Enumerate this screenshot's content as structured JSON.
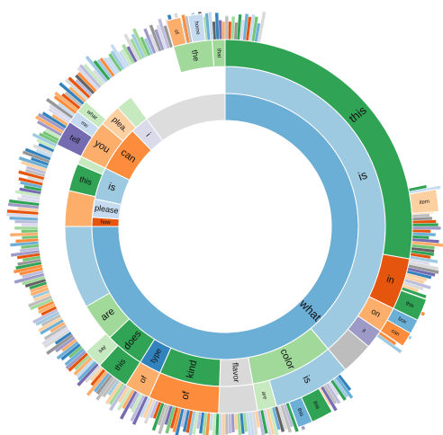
{
  "chart_data": {
    "type": "sunburst",
    "title": "",
    "description": "",
    "palette": [
      "#3182bd",
      "#6baed6",
      "#9ecae1",
      "#c6dbef",
      "#e6550d",
      "#fd8d3c",
      "#fdae6b",
      "#fdd0a2",
      "#31a354",
      "#74c476",
      "#a1d99b",
      "#c7e9c0",
      "#756bb1",
      "#9e9ac8",
      "#bcbddc",
      "#dadaeb",
      "#636363",
      "#969696",
      "#bdbdbd",
      "#d9d9d9"
    ],
    "segments": [
      {
        "label": "what",
        "ring": 1,
        "start": 0,
        "end": 270,
        "color": "#6baed6"
      },
      {
        "label": "how",
        "ring": 1,
        "start": 270,
        "end": 274,
        "color": "#e6550d"
      },
      {
        "label": "please",
        "ring": 1,
        "start": 274,
        "end": 282,
        "color": "#c6dbef"
      },
      {
        "label": "is",
        "ring": 1,
        "start": 282,
        "end": 296,
        "color": "#9ecae1"
      },
      {
        "label": "can",
        "ring": 1,
        "start": 296,
        "end": 316,
        "color": "#fd8d3c"
      },
      {
        "label": "i",
        "ring": 1,
        "start": 316,
        "end": 324,
        "color": "#dadaeb"
      },
      {
        "label": "",
        "ring": 1,
        "start": 324,
        "end": 360,
        "color": "#dddddd"
      },
      {
        "label": "is",
        "ring": 2,
        "start": 0,
        "end": 140,
        "color": "#9ecae1"
      },
      {
        "label": "color",
        "ring": 2,
        "start": 140,
        "end": 170,
        "color": "#a1d99b"
      },
      {
        "label": "flavor",
        "ring": 2,
        "start": 170,
        "end": 182,
        "color": "#d9d9d9"
      },
      {
        "label": "kind",
        "ring": 2,
        "start": 182,
        "end": 204,
        "color": "#31a354"
      },
      {
        "label": "type",
        "ring": 2,
        "start": 204,
        "end": 212,
        "color": "#3182bd"
      },
      {
        "label": "does",
        "ring": 2,
        "start": 212,
        "end": 226,
        "color": "#31a354"
      },
      {
        "label": "are",
        "ring": 2,
        "start": 226,
        "end": 240,
        "color": "#a1d99b"
      },
      {
        "label": "",
        "ring": 2,
        "start": 240,
        "end": 270,
        "color": "#9ecae1"
      },
      {
        "label": "",
        "ring": 2,
        "start": 270,
        "end": 283,
        "color": "#fdae6b"
      },
      {
        "label": "this",
        "ring": 2,
        "start": 283,
        "end": 293,
        "color": "#31a354"
      },
      {
        "label": "",
        "ring": 2,
        "start": 293,
        "end": 296,
        "color": "#c7e9c0"
      },
      {
        "label": "you",
        "ring": 2,
        "start": 296,
        "end": 310,
        "color": "#fdae6b"
      },
      {
        "label": "plea.",
        "ring": 2,
        "start": 310,
        "end": 318,
        "color": "#fdd0a2"
      },
      {
        "label": "",
        "ring": 2,
        "start": 318,
        "end": 324,
        "color": "#c7e9c0"
      },
      {
        "label": "this",
        "ring": 3,
        "start": 0,
        "end": 100,
        "color": "#31a354"
      },
      {
        "label": "in",
        "ring": 3,
        "start": 100,
        "end": 116,
        "color": "#e6550d"
      },
      {
        "label": "on",
        "ring": 3,
        "start": 116,
        "end": 124,
        "color": "#fdae6b"
      },
      {
        "label": "it",
        "ring": 3,
        "start": 124,
        "end": 130,
        "color": "#9e9ac8"
      },
      {
        "label": "",
        "ring": 3,
        "start": 130,
        "end": 140,
        "color": "#bdbdbd"
      },
      {
        "label": "is",
        "ring": 3,
        "start": 140,
        "end": 164,
        "color": "#9ecae1"
      },
      {
        "label": "are",
        "ring": 3,
        "start": 164,
        "end": 170,
        "color": "#c7e9c0"
      },
      {
        "label": "",
        "ring": 3,
        "start": 170,
        "end": 182,
        "color": "#d9d9d9"
      },
      {
        "label": "of",
        "ring": 3,
        "start": 182,
        "end": 204,
        "color": "#fd8d3c"
      },
      {
        "label": "of",
        "ring": 3,
        "start": 204,
        "end": 212,
        "color": "#fdae6b"
      },
      {
        "label": "this",
        "ring": 3,
        "start": 212,
        "end": 222,
        "color": "#31a354"
      },
      {
        "label": "say",
        "ring": 3,
        "start": 222,
        "end": 228,
        "color": "#c7e9c0"
      },
      {
        "label": "tell",
        "ring": 3,
        "start": 296,
        "end": 304,
        "color": "#756bb1"
      },
      {
        "label": "me",
        "ring": 3,
        "start": 304,
        "end": 308,
        "color": "#c6dbef"
      },
      {
        "label": "what",
        "ring": 3,
        "start": 308,
        "end": 312,
        "color": "#c7e9c0"
      },
      {
        "label": "the",
        "ring": 3,
        "start": 344,
        "end": 356,
        "color": "#a1d99b"
      },
      {
        "label": "that",
        "ring": 3,
        "start": 356,
        "end": 360,
        "color": "#a1d99b"
      },
      {
        "label": "item",
        "ring": 4,
        "start": 80,
        "end": 86,
        "color": "#fdd0a2"
      },
      {
        "label": "this",
        "ring": 4,
        "start": 110,
        "end": 116,
        "color": "#31a354"
      },
      {
        "label": "box",
        "ring": 4,
        "start": 116,
        "end": 120,
        "color": "#6baed6"
      },
      {
        "label": "can",
        "ring": 4,
        "start": 120,
        "end": 124,
        "color": "#fd8d3c"
      },
      {
        "label": "this",
        "ring": 4,
        "start": 150,
        "end": 156,
        "color": "#31a354"
      },
      {
        "label": "this",
        "ring": 4,
        "start": 156,
        "end": 160,
        "color": "#6baed6"
      },
      {
        "label": "home",
        "ring": 4,
        "start": 350,
        "end": 354,
        "color": "#c6dbef"
      },
      {
        "label": "of",
        "ring": 4,
        "start": 344,
        "end": 348,
        "color": "#fdae6b"
      }
    ]
  }
}
